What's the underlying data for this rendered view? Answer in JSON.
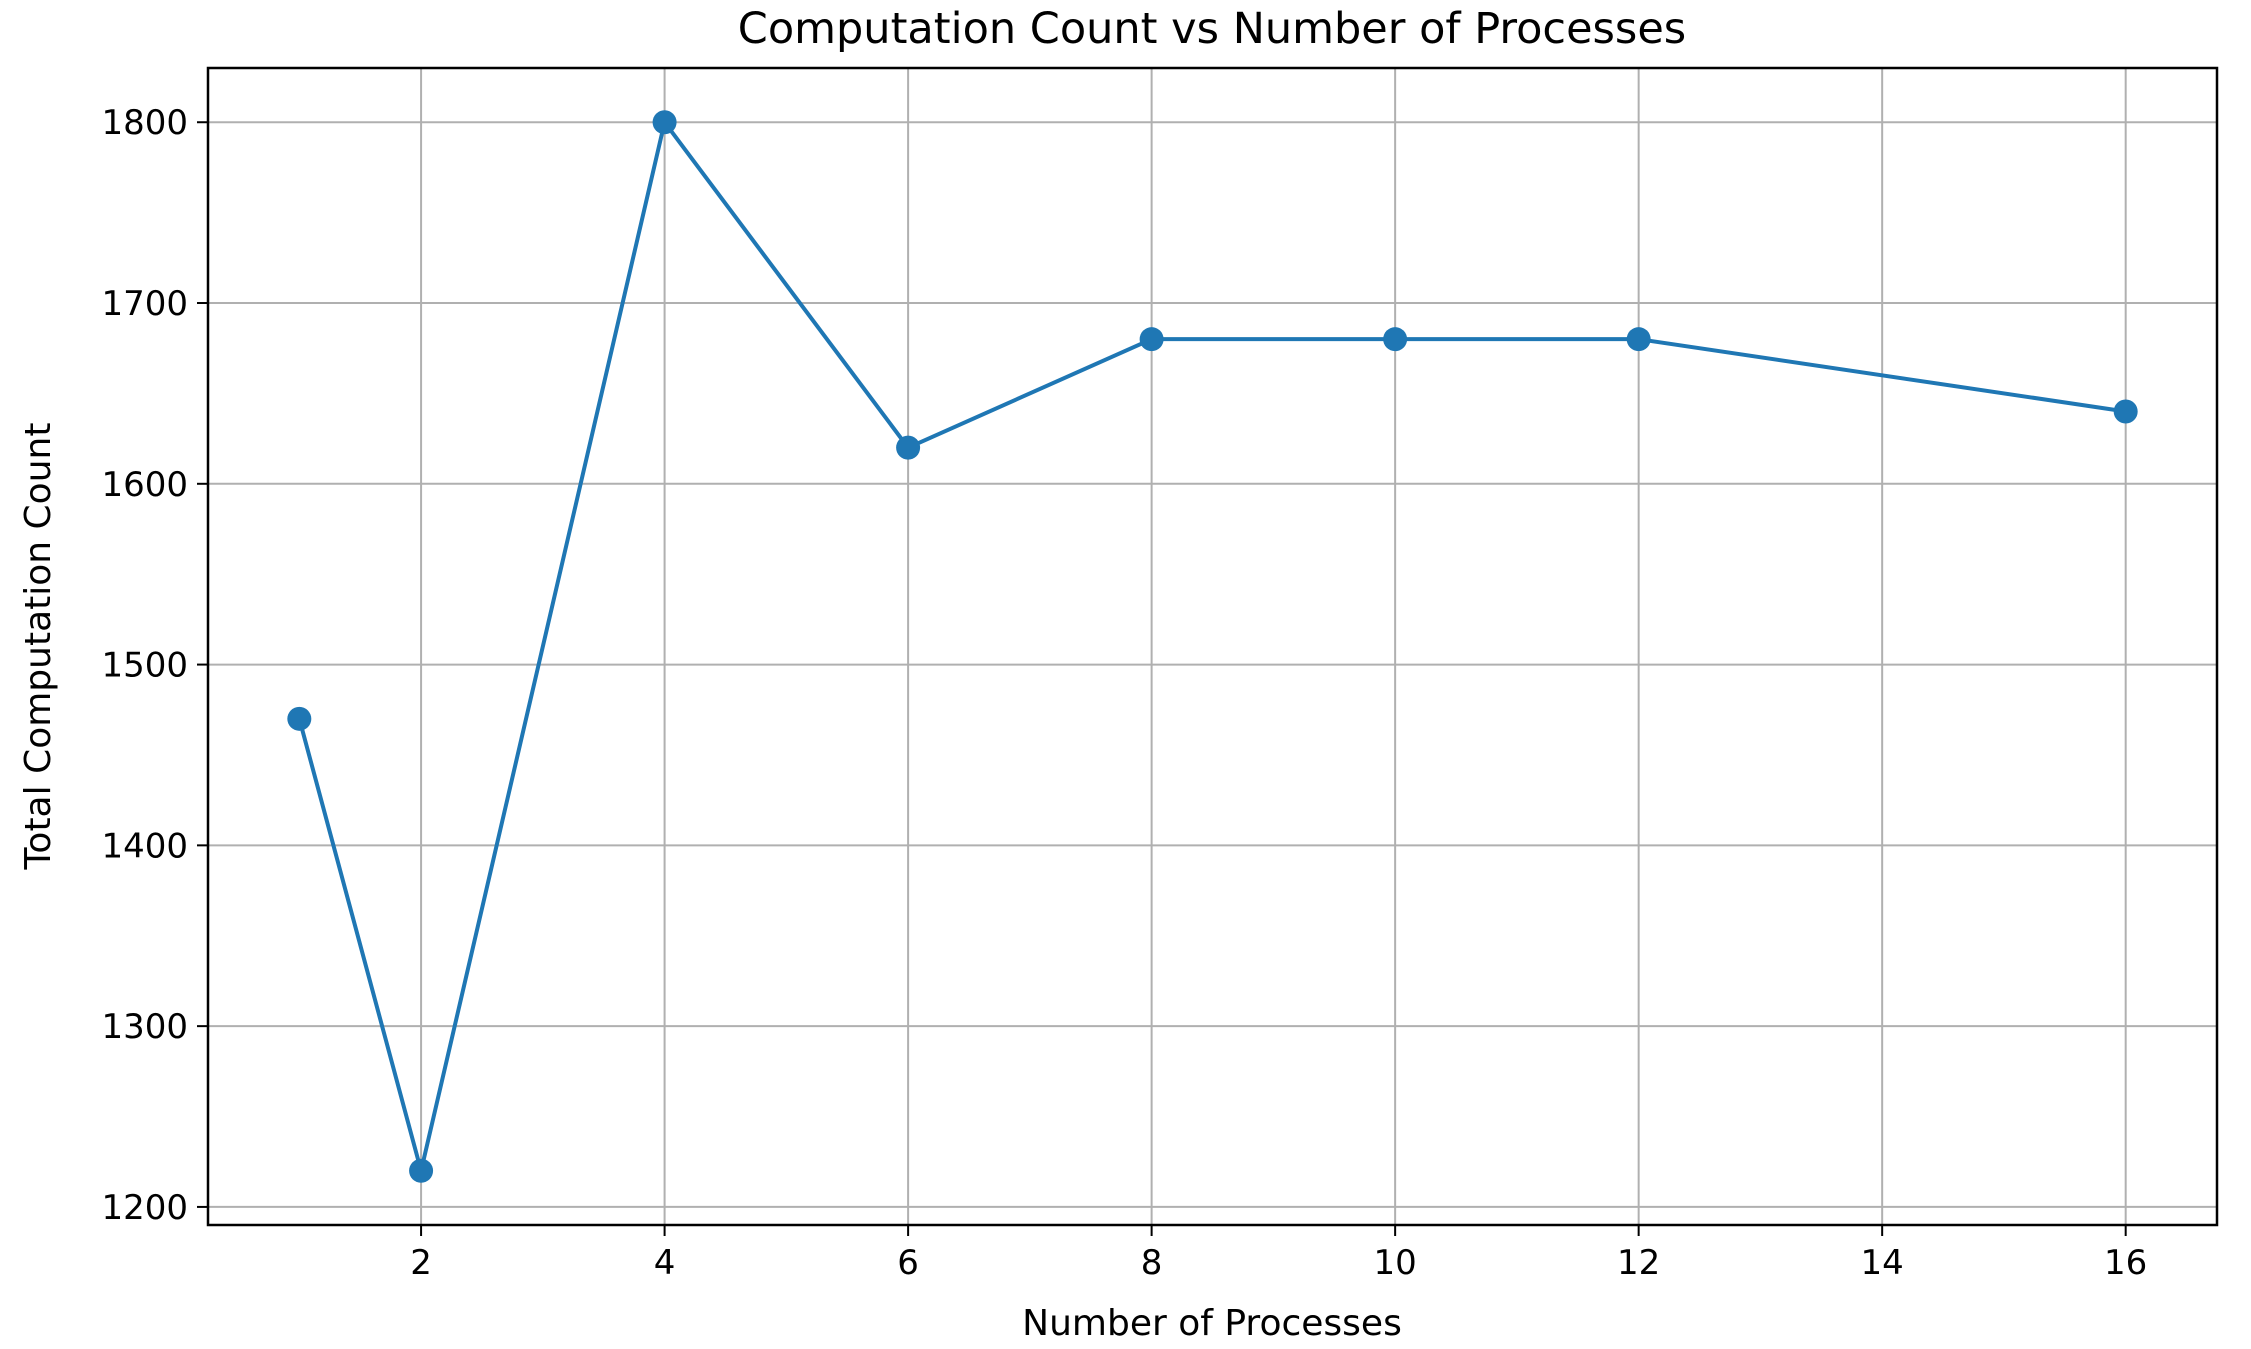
{
  "chart_data": {
    "type": "line",
    "title": "Computation Count vs Number of Processes",
    "xlabel": "Number of Processes",
    "ylabel": "Total Computation Count",
    "x": [
      1,
      2,
      4,
      6,
      8,
      10,
      12,
      16
    ],
    "series": [
      {
        "values": [
          1470,
          1220,
          1800,
          1620,
          1680,
          1680,
          1680,
          1640
        ],
        "color": "#1f77b4",
        "marker": "circle"
      }
    ],
    "xlim": [
      0.25,
      16.75
    ],
    "ylim": [
      1190,
      1830
    ],
    "xticks": [
      2,
      4,
      6,
      8,
      10,
      12,
      14,
      16
    ],
    "yticks": [
      1200,
      1300,
      1400,
      1500,
      1600,
      1700,
      1800
    ],
    "grid": true,
    "legend": "none"
  }
}
